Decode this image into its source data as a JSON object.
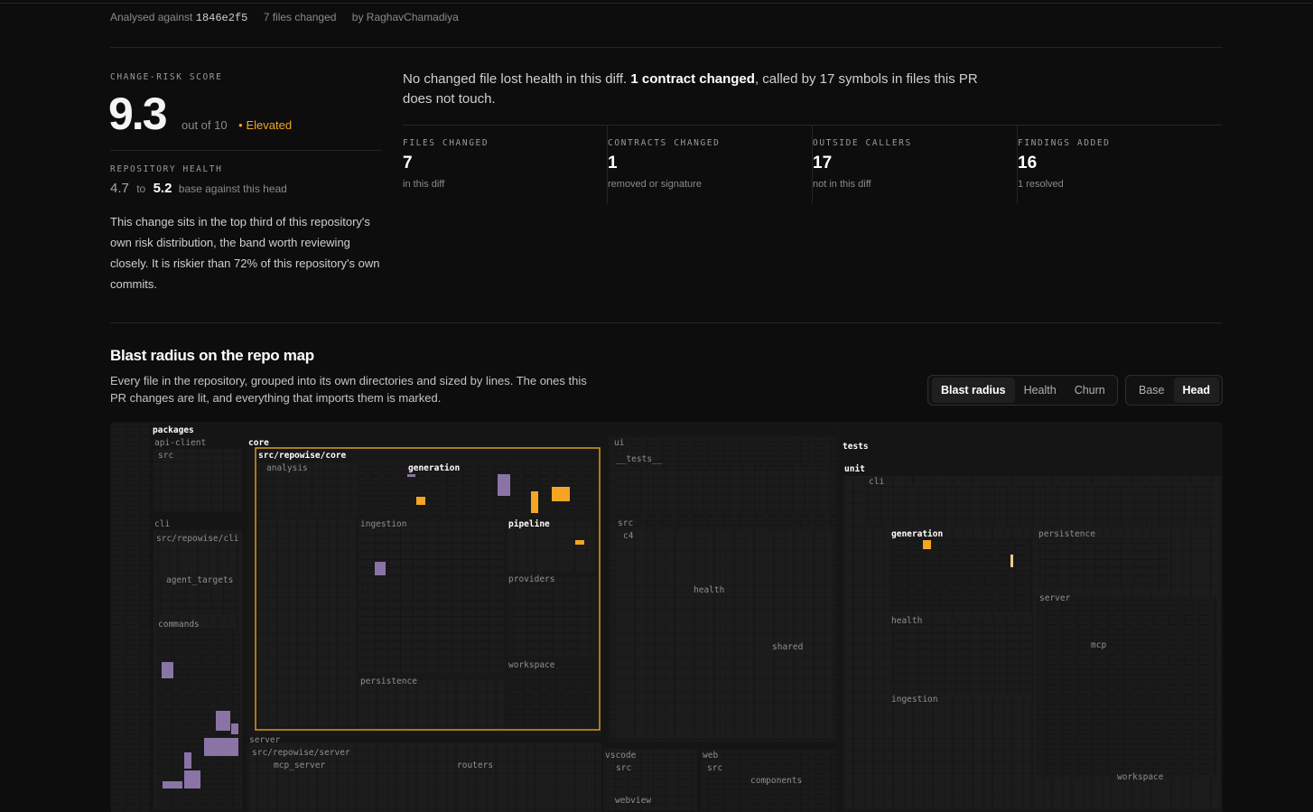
{
  "meta": {
    "analysed_prefix": "Analysed against",
    "sha": "1846e2f5",
    "files_changed": "7 files changed",
    "author": "by RaghavChamadiya"
  },
  "score": {
    "label": "CHANGE-RISK SCORE",
    "value": "9.3",
    "out_of": "out of 10",
    "level": "Elevated",
    "level_dot": "●",
    "level_color": "#f5a524"
  },
  "repo_health": {
    "label": "REPOSITORY HEALTH",
    "from": "4.7",
    "to_word": "to",
    "to": "5.2",
    "suffix": "base against this head"
  },
  "description": "This change sits in the top third of this repository's own risk distribution, the band worth reviewing closely. It is riskier than 72% of this repository's own commits.",
  "headline": {
    "part1": "No changed file lost health in this diff.",
    "bold": "1 contract changed",
    "part2": ", called by 17 symbols in files this PR does not touch."
  },
  "stats": [
    {
      "label": "FILES CHANGED",
      "value": "7",
      "sub": "in this diff"
    },
    {
      "label": "CONTRACTS CHANGED",
      "value": "1",
      "sub": "removed or signature"
    },
    {
      "label": "OUTSIDE CALLERS",
      "value": "17",
      "sub": "not in this diff"
    },
    {
      "label": "FINDINGS ADDED",
      "value": "16",
      "sub": "1 resolved"
    }
  ],
  "blast": {
    "title": "Blast radius on the repo map",
    "subtitle": "Every file in the repository, grouped into its own directories and sized by lines. The ones this PR changes are lit, and everything that imports them is marked.",
    "modes": [
      "Blast radius",
      "Health",
      "Churn"
    ],
    "active_mode": "Blast radius",
    "versions": [
      "Base",
      "Head"
    ],
    "active_version": "Head"
  },
  "treemap_labels": {
    "packages": "packages",
    "api_client": "api-client",
    "api_src": "src",
    "cli": "cli",
    "cli_src": "src/repowise/cli",
    "agent_targets": "agent_targets",
    "commands": "commands",
    "core": "core",
    "core_src": "src/repowise/core",
    "analysis": "analysis",
    "generation": "generation",
    "ingestion": "ingestion",
    "pipeline": "pipeline",
    "providers": "providers",
    "workspace": "workspace",
    "persistence": "persistence",
    "server": "server",
    "server_src": "src/repowise/server",
    "mcp_server": "mcp_server",
    "routers": "routers",
    "ui": "ui",
    "ui_tests": "__tests__",
    "ui_src": "src",
    "c4": "c4",
    "health": "health",
    "shared": "shared",
    "vscode": "vscode",
    "vscode_src": "src",
    "webview": "webview",
    "web": "web",
    "web_src": "src",
    "components": "components",
    "tests": "tests",
    "unit": "unit",
    "t_cli": "cli",
    "t_generation": "generation",
    "t_persistence": "persistence",
    "t_server": "server",
    "t_health": "health",
    "t_mcp": "mcp",
    "t_ingestion": "ingestion",
    "t_workspace": "workspace"
  },
  "colors": {
    "background": "#0d0d0d",
    "changed": "#f5a524",
    "changed_light": "#f2c98a",
    "importer": "#8a74a6",
    "contract_border": "#d89b1c"
  }
}
